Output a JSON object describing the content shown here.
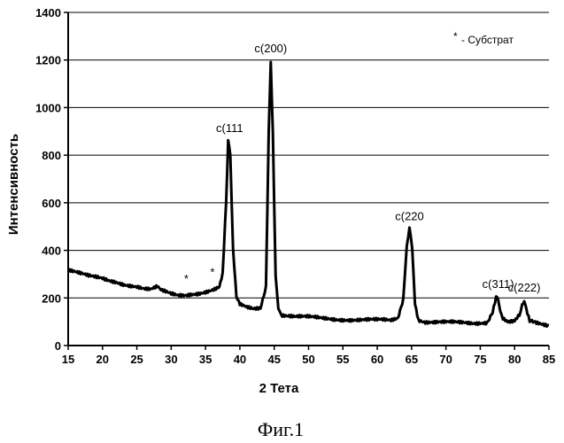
{
  "chart_data": {
    "type": "line",
    "xlabel": "2 Тета",
    "ylabel": "Интенсивность",
    "xlim": [
      15,
      85
    ],
    "ylim": [
      0,
      1400
    ],
    "x_ticks": [
      "15",
      "20",
      "25",
      "30",
      "35",
      "40",
      "45",
      "50",
      "55",
      "60",
      "65",
      "70",
      "75",
      "80",
      "85"
    ],
    "y_ticks": [
      "0",
      "200",
      "400",
      "600",
      "800",
      "1000",
      "1200",
      "1400"
    ],
    "grid": "horizontal",
    "legend": {
      "marker": "*",
      "text": "- Субстрат",
      "placement": "top-right"
    },
    "series": [
      {
        "color": "#000000",
        "x": [
          15,
          16,
          17,
          18,
          19,
          20,
          21,
          22,
          23,
          24,
          25,
          26,
          27,
          28,
          28.5,
          29,
          30,
          31,
          32,
          33,
          34,
          35,
          36,
          37,
          37.5,
          38,
          38.3,
          38.6,
          39,
          39.5,
          40,
          41,
          42,
          43,
          43.8,
          44.2,
          44.5,
          44.8,
          45.2,
          45.6,
          46,
          47,
          48,
          50,
          52,
          54,
          56,
          58,
          60,
          62,
          63,
          63.8,
          64.3,
          64.7,
          65.1,
          65.5,
          66,
          67,
          68,
          70,
          72,
          74,
          76,
          76.8,
          77.3,
          77.6,
          77.9,
          78.3,
          79,
          80,
          80.7,
          81.1,
          81.4,
          81.7,
          82.2,
          83,
          84,
          85
        ],
        "y": [
          320,
          310,
          300,
          290,
          285,
          280,
          272,
          268,
          260,
          255,
          250,
          240,
          235,
          245,
          230,
          225,
          215,
          210,
          212,
          218,
          222,
          228,
          235,
          245,
          300,
          600,
          860,
          800,
          400,
          200,
          170,
          160,
          155,
          160,
          250,
          900,
          1195,
          900,
          300,
          150,
          130,
          125,
          120,
          118,
          115,
          112,
          110,
          108,
          106,
          104,
          115,
          200,
          420,
          490,
          400,
          180,
          110,
          100,
          98,
          96,
          95,
          94,
          100,
          140,
          200,
          190,
          150,
          110,
          98,
          100,
          130,
          180,
          190,
          150,
          100,
          95,
          90,
          85
        ]
      }
    ],
    "annotations": [
      {
        "text": "c(111",
        "x": 38.5,
        "y": 860
      },
      {
        "text": "c(200)",
        "x": 44.5,
        "y": 1195
      },
      {
        "text": "c(220",
        "x": 64.7,
        "y": 490
      },
      {
        "text": "c(311)",
        "x": 77.6,
        "y": 205
      },
      {
        "text": "c(222)",
        "x": 81.4,
        "y": 190
      },
      {
        "text": "*",
        "x": 32.2,
        "y": 212
      },
      {
        "text": "*",
        "x": 36,
        "y": 240
      }
    ]
  },
  "caption": "Фиг.1"
}
